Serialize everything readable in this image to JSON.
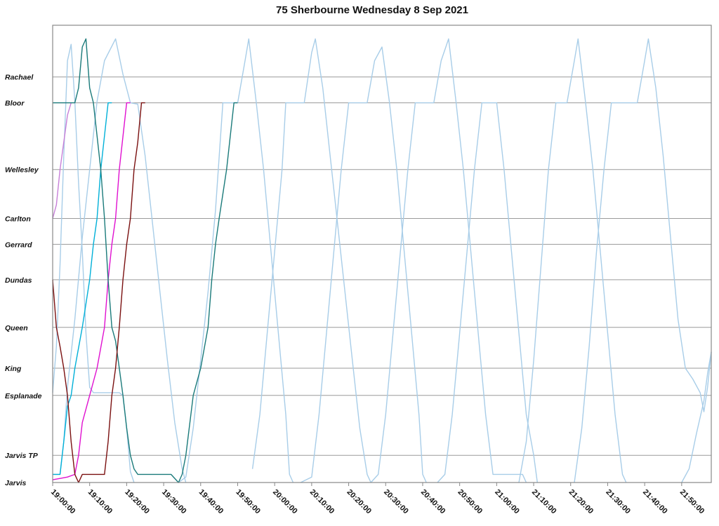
{
  "chart_data": {
    "type": "line",
    "title": "75 Sherbourne Wednesday 8 Sep 2021",
    "xlabel": "",
    "ylabel": "",
    "x_ticks": [
      "19:00:00",
      "19:10:00",
      "19:20:00",
      "19:30:00",
      "19:40:00",
      "19:50:00",
      "20:00:00",
      "20:10:00",
      "20:20:00",
      "20:30:00",
      "20:40:00",
      "20:50:00",
      "21:00:00",
      "21:10:00",
      "21:20:00",
      "21:30:00",
      "21:40:00",
      "21:50:00"
    ],
    "xlim": [
      "19:00:00",
      "21:58:00"
    ],
    "stops": [
      "Jarvis",
      "Jarvis TP",
      "Esplanade",
      "King",
      "Queen",
      "Dundas",
      "Gerrard",
      "Carlton",
      "Wellesley",
      "Bloor",
      "Rachael"
    ],
    "stop_positions": [
      0,
      1,
      3.2,
      4.2,
      5.7,
      7.45,
      8.75,
      9.7,
      11.5,
      13.95,
      14.9
    ],
    "ylim": [
      0,
      16.8
    ],
    "grid": true,
    "legend": "none",
    "series": [
      {
        "color": "#a8cde8",
        "points": [
          [
            "19:00:00",
            3.3
          ],
          [
            "19:01:00",
            5.0
          ],
          [
            "19:02:00",
            8.0
          ],
          [
            "19:03:00",
            12.0
          ],
          [
            "19:04:00",
            15.5
          ],
          [
            "19:05:00",
            16.1
          ],
          [
            "19:06:00",
            14.0
          ],
          [
            "19:07:00",
            11.0
          ],
          [
            "19:08:00",
            8.5
          ],
          [
            "19:09:00",
            5.5
          ],
          [
            "19:10:00",
            3.5
          ],
          [
            "19:11:00",
            3.3
          ],
          [
            "19:12:00",
            3.3
          ],
          [
            "19:13:00",
            3.3
          ],
          [
            "19:14:00",
            3.3
          ],
          [
            "19:15:00",
            3.3
          ],
          [
            "19:16:00",
            3.3
          ],
          [
            "19:17:00",
            3.3
          ],
          [
            "19:18:00",
            3.3
          ],
          [
            "19:19:00",
            3.2
          ],
          [
            "19:20:00",
            2.0
          ],
          [
            "19:21:00",
            0.4
          ],
          [
            "19:22:00",
            0
          ]
        ]
      },
      {
        "color": "#a8cde8",
        "points": [
          [
            "19:00:00",
            0.3
          ],
          [
            "19:02:00",
            0.3
          ],
          [
            "19:03:00",
            1.5
          ],
          [
            "19:04:00",
            3.5
          ],
          [
            "19:06:00",
            6.0
          ],
          [
            "19:08:00",
            9.0
          ],
          [
            "19:10:00",
            11.5
          ],
          [
            "19:12:00",
            14.0
          ],
          [
            "19:14:00",
            15.5
          ],
          [
            "19:17:00",
            16.3
          ],
          [
            "19:19:00",
            15.0
          ],
          [
            "19:21:00",
            13.95
          ],
          [
            "19:23:00",
            13.9
          ],
          [
            "19:25:00",
            12.0
          ],
          [
            "19:27:00",
            9.5
          ],
          [
            "19:29:00",
            7.0
          ],
          [
            "19:31:00",
            4.5
          ],
          [
            "19:33:00",
            2.2
          ],
          [
            "19:35:00",
            0.5
          ],
          [
            "19:36:00",
            0
          ]
        ]
      },
      {
        "color": "#a8cde8",
        "points": [
          [
            "19:34:00",
            0
          ],
          [
            "19:36:00",
            0.2
          ],
          [
            "19:38:00",
            2.0
          ],
          [
            "19:40:00",
            4.5
          ],
          [
            "19:42:00",
            7.0
          ],
          [
            "19:44:00",
            10.0
          ],
          [
            "19:46:00",
            13.95
          ],
          [
            "19:50:00",
            13.95
          ],
          [
            "19:52:00",
            15.5
          ],
          [
            "19:53:00",
            16.3
          ],
          [
            "19:55:00",
            14.0
          ],
          [
            "19:57:00",
            11.5
          ],
          [
            "19:59:00",
            8.5
          ],
          [
            "20:01:00",
            5.5
          ],
          [
            "20:03:00",
            2.5
          ],
          [
            "20:04:00",
            0.3
          ],
          [
            "20:05:00",
            0
          ]
        ]
      },
      {
        "color": "#a8cde8",
        "points": [
          [
            "19:54:00",
            0.5
          ],
          [
            "19:56:00",
            2.5
          ],
          [
            "19:58:00",
            5.5
          ],
          [
            "20:00:00",
            8.5
          ],
          [
            "20:02:00",
            11.5
          ],
          [
            "20:03:00",
            13.95
          ],
          [
            "20:08:00",
            13.95
          ],
          [
            "20:10:00",
            15.8
          ],
          [
            "20:11:00",
            16.3
          ],
          [
            "20:13:00",
            14.5
          ],
          [
            "20:15:00",
            12.0
          ],
          [
            "20:17:00",
            9.5
          ],
          [
            "20:19:00",
            7.0
          ],
          [
            "20:21:00",
            4.5
          ],
          [
            "20:23:00",
            2.0
          ],
          [
            "20:25:00",
            0.3
          ],
          [
            "20:26:00",
            0
          ]
        ]
      },
      {
        "color": "#a8cde8",
        "points": [
          [
            "20:07:00",
            0
          ],
          [
            "20:10:00",
            0.2
          ],
          [
            "20:12:00",
            2.5
          ],
          [
            "20:14:00",
            5.5
          ],
          [
            "20:16:00",
            8.5
          ],
          [
            "20:18:00",
            11.5
          ],
          [
            "20:20:00",
            13.95
          ],
          [
            "20:25:00",
            13.95
          ],
          [
            "20:27:00",
            15.5
          ],
          [
            "20:29:00",
            16.0
          ],
          [
            "20:31:00",
            14.0
          ],
          [
            "20:33:00",
            11.5
          ],
          [
            "20:35:00",
            8.5
          ],
          [
            "20:37:00",
            5.5
          ],
          [
            "20:39:00",
            2.5
          ],
          [
            "20:40:00",
            0.3
          ],
          [
            "20:41:00",
            0
          ]
        ]
      },
      {
        "color": "#a8cde8",
        "points": [
          [
            "20:26:00",
            0
          ],
          [
            "20:28:00",
            0.3
          ],
          [
            "20:30:00",
            2.5
          ],
          [
            "20:32:00",
            5.5
          ],
          [
            "20:34:00",
            8.5
          ],
          [
            "20:36:00",
            11.5
          ],
          [
            "20:38:00",
            13.95
          ],
          [
            "20:43:00",
            13.95
          ],
          [
            "20:45:00",
            15.5
          ],
          [
            "20:47:00",
            16.3
          ],
          [
            "20:49:00",
            14.0
          ],
          [
            "20:51:00",
            11.5
          ],
          [
            "20:53:00",
            8.5
          ],
          [
            "20:55:00",
            5.5
          ],
          [
            "20:57:00",
            2.5
          ],
          [
            "20:59:00",
            0.3
          ],
          [
            "21:00:00",
            0.3
          ],
          [
            "21:07:00",
            0.3
          ],
          [
            "21:08:00",
            0
          ]
        ]
      },
      {
        "color": "#a8cde8",
        "points": [
          [
            "20:44:00",
            0
          ],
          [
            "20:46:00",
            0.3
          ],
          [
            "20:48:00",
            2.5
          ],
          [
            "20:50:00",
            5.5
          ],
          [
            "20:52:00",
            8.5
          ],
          [
            "20:54:00",
            11.5
          ],
          [
            "20:56:00",
            13.95
          ],
          [
            "21:00:00",
            13.95
          ],
          [
            "21:02:00",
            11.5
          ],
          [
            "21:04:00",
            8.5
          ],
          [
            "21:06:00",
            5.5
          ],
          [
            "21:08:00",
            2.5
          ],
          [
            "21:10:00",
            1.0
          ],
          [
            "21:11:00",
            0
          ]
        ]
      },
      {
        "color": "#a8cde8",
        "points": [
          [
            "21:06:00",
            0
          ],
          [
            "21:08:00",
            1.5
          ],
          [
            "21:10:00",
            4.5
          ],
          [
            "21:12:00",
            8.0
          ],
          [
            "21:14:00",
            11.5
          ],
          [
            "21:16:00",
            13.95
          ],
          [
            "21:19:00",
            13.95
          ],
          [
            "21:21:00",
            15.5
          ],
          [
            "21:22:00",
            16.3
          ],
          [
            "21:24:00",
            14.0
          ],
          [
            "21:26:00",
            11.5
          ],
          [
            "21:28:00",
            8.5
          ],
          [
            "21:30:00",
            5.5
          ],
          [
            "21:32:00",
            2.5
          ],
          [
            "21:34:00",
            0.3
          ],
          [
            "21:35:00",
            0
          ]
        ]
      },
      {
        "color": "#a8cde8",
        "points": [
          [
            "21:21:00",
            0
          ],
          [
            "21:23:00",
            2.0
          ],
          [
            "21:25:00",
            5.0
          ],
          [
            "21:27:00",
            8.5
          ],
          [
            "21:29:00",
            11.5
          ],
          [
            "21:31:00",
            13.95
          ],
          [
            "21:38:00",
            13.95
          ],
          [
            "21:40:00",
            15.5
          ],
          [
            "21:41:00",
            16.3
          ],
          [
            "21:43:00",
            14.5
          ],
          [
            "21:45:00",
            12.0
          ],
          [
            "21:47:00",
            9.0
          ],
          [
            "21:49:00",
            6.0
          ],
          [
            "21:51:00",
            4.2
          ],
          [
            "21:53:00",
            3.8
          ],
          [
            "21:55:00",
            3.3
          ],
          [
            "21:56:00",
            2.6
          ],
          [
            "21:57:00",
            3.5
          ],
          [
            "21:58:00",
            4.8
          ]
        ]
      },
      {
        "color": "#a8cde8",
        "points": [
          [
            "21:50:00",
            0
          ],
          [
            "21:52:00",
            0.5
          ],
          [
            "21:54:00",
            1.8
          ],
          [
            "21:56:00",
            3.0
          ],
          [
            "21:57:00",
            4.0
          ],
          [
            "21:58:00",
            4.8
          ]
        ]
      },
      {
        "color": "#c77fd8",
        "points": [
          [
            "19:00:00",
            9.7
          ],
          [
            "19:01:00",
            10.2
          ],
          [
            "19:02:00",
            11.5
          ],
          [
            "19:03:00",
            12.5
          ],
          [
            "19:04:00",
            13.5
          ],
          [
            "19:05:00",
            13.95
          ]
        ]
      },
      {
        "color": "#00b0d8",
        "points": [
          [
            "19:00:00",
            0.3
          ],
          [
            "19:02:00",
            0.3
          ],
          [
            "19:03:00",
            1.5
          ],
          [
            "19:04:00",
            2.8
          ],
          [
            "19:05:00",
            3.2
          ],
          [
            "19:06:00",
            4.2
          ],
          [
            "19:08:00",
            5.7
          ],
          [
            "19:10:00",
            7.45
          ],
          [
            "19:11:00",
            8.75
          ],
          [
            "19:12:00",
            9.7
          ],
          [
            "19:13:00",
            11.5
          ],
          [
            "19:15:00",
            13.95
          ],
          [
            "19:16:00",
            13.95
          ]
        ]
      },
      {
        "color": "#e010d0",
        "points": [
          [
            "19:00:00",
            0.1
          ],
          [
            "19:02:00",
            0.15
          ],
          [
            "19:04:00",
            0.2
          ],
          [
            "19:06:00",
            0.3
          ],
          [
            "19:07:00",
            1.0
          ],
          [
            "19:08:00",
            2.2
          ],
          [
            "19:10:00",
            3.2
          ],
          [
            "19:12:00",
            4.2
          ],
          [
            "19:14:00",
            5.7
          ],
          [
            "19:15:00",
            7.45
          ],
          [
            "19:16:00",
            8.75
          ],
          [
            "19:17:00",
            9.7
          ],
          [
            "19:18:00",
            11.5
          ],
          [
            "19:20:00",
            13.95
          ],
          [
            "19:21:00",
            13.95
          ]
        ]
      },
      {
        "color": "#1a7a7a",
        "points": [
          [
            "19:00:00",
            13.95
          ],
          [
            "19:06:00",
            13.95
          ],
          [
            "19:07:00",
            14.5
          ],
          [
            "19:08:00",
            16.0
          ],
          [
            "19:09:00",
            16.3
          ],
          [
            "19:10:00",
            14.5
          ],
          [
            "19:11:00",
            13.95
          ],
          [
            "19:13:00",
            11.5
          ],
          [
            "19:14:00",
            9.7
          ],
          [
            "19:15:00",
            7.45
          ],
          [
            "19:16:00",
            5.7
          ],
          [
            "19:17:00",
            5.2
          ],
          [
            "19:18:00",
            4.2
          ],
          [
            "19:19:00",
            3.2
          ],
          [
            "19:20:00",
            2.0
          ],
          [
            "19:21:00",
            1.0
          ],
          [
            "19:22:00",
            0.5
          ],
          [
            "19:23:00",
            0.3
          ],
          [
            "19:32:00",
            0.3
          ],
          [
            "19:34:00",
            0
          ],
          [
            "19:35:00",
            0.3
          ],
          [
            "19:36:00",
            1.0
          ],
          [
            "19:38:00",
            3.2
          ],
          [
            "19:40:00",
            4.2
          ],
          [
            "19:42:00",
            5.7
          ],
          [
            "19:43:00",
            7.45
          ],
          [
            "19:44:00",
            8.75
          ],
          [
            "19:45:00",
            9.7
          ],
          [
            "19:47:00",
            11.5
          ],
          [
            "19:49:00",
            13.95
          ],
          [
            "19:50:00",
            13.95
          ]
        ]
      },
      {
        "color": "#7a1010",
        "points": [
          [
            "19:00:00",
            7.45
          ],
          [
            "19:01:00",
            5.7
          ],
          [
            "19:02:00",
            5.0
          ],
          [
            "19:03:00",
            4.2
          ],
          [
            "19:04:00",
            3.2
          ],
          [
            "19:05:00",
            1.5
          ],
          [
            "19:06:00",
            0.3
          ],
          [
            "19:07:00",
            0
          ],
          [
            "19:08:00",
            0.3
          ],
          [
            "19:10:00",
            0.3
          ],
          [
            "19:12:00",
            0.3
          ],
          [
            "19:14:00",
            0.3
          ],
          [
            "19:15:00",
            1.5
          ],
          [
            "19:16:00",
            3.2
          ],
          [
            "19:17:00",
            4.2
          ],
          [
            "19:18:00",
            5.7
          ],
          [
            "19:19:00",
            7.45
          ],
          [
            "19:20:00",
            8.75
          ],
          [
            "19:21:00",
            9.7
          ],
          [
            "19:22:00",
            11.5
          ],
          [
            "19:23:00",
            12.5
          ],
          [
            "19:24:00",
            13.95
          ],
          [
            "19:25:00",
            13.95
          ]
        ]
      }
    ]
  }
}
